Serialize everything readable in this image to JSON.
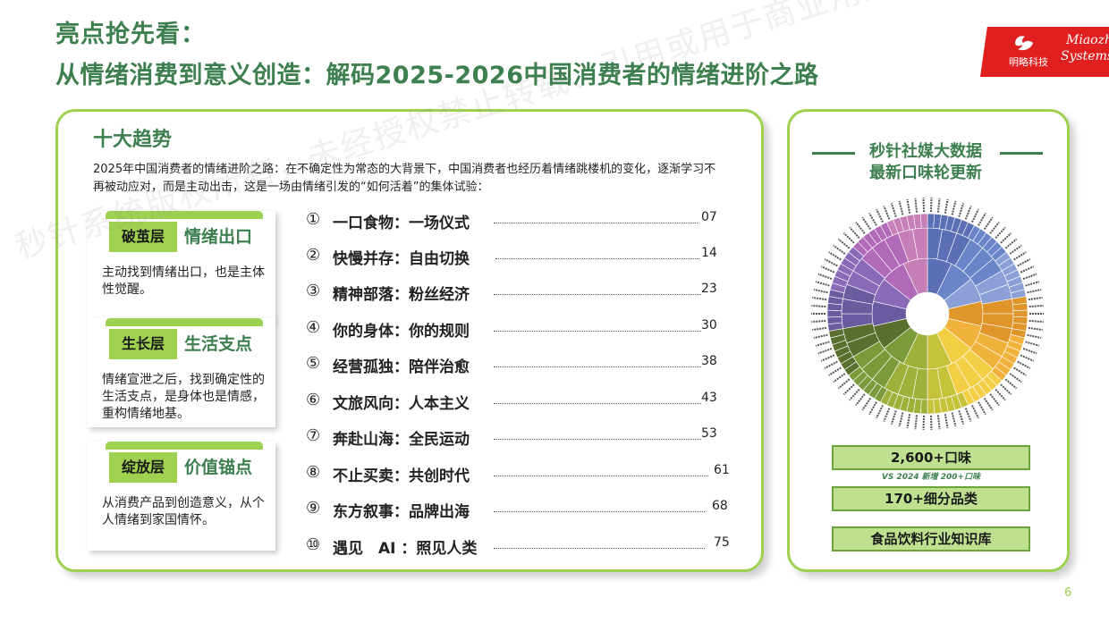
{
  "header": {
    "line1": "亮点抢先看：",
    "line2": "从情绪消费到意义创造：解码2025-2026中国消费者的情绪进阶之路"
  },
  "logo": {
    "cn": "明略科技",
    "en_line1": "Miaozhen",
    "en_line2": "Systems"
  },
  "left_panel": {
    "title": "十大趋势",
    "intro": "2025年中国消费者的情绪进阶之路：在不确定性为常态的大背景下，中国消费者也经历着情绪跳楼机的变化，逐渐学习不再被动应对，而是主动出击，这是一场由情绪引发的“如何活着”的集体试验：",
    "layers": [
      {
        "name": "破茧层",
        "tag": "情绪出口",
        "desc": "主动找到情绪出口，也是主体性觉醒。"
      },
      {
        "name": "生长层",
        "tag": "生活支点",
        "desc": "情绪宣泄之后，找到确定性的生活支点，是身体也是情感，重构情绪地基。"
      },
      {
        "name": "绽放层",
        "tag": "价值锚点",
        "desc": "从消费产品到创造意义，从个人情绪到家国情怀。"
      }
    ],
    "toc": [
      {
        "num": "①",
        "text": "一口食物：一场仪式",
        "page": "07"
      },
      {
        "num": "②",
        "text": "快慢并存：自由切换",
        "page": "14"
      },
      {
        "num": "③",
        "text": "精神部落：粉丝经济",
        "page": "23"
      },
      {
        "num": "④",
        "text": "你的身体：你的规则",
        "page": "30"
      },
      {
        "num": "⑤",
        "text": "经营孤独：陪伴治愈",
        "page": "38"
      },
      {
        "num": "⑥",
        "text": "文旅风向：人本主义",
        "page": "43"
      },
      {
        "num": "⑦",
        "text": "奔赴山海：全民运动",
        "page": "53"
      },
      {
        "num": "⑧",
        "text": "不止买卖：共创时代",
        "page": "61"
      },
      {
        "num": "⑨",
        "text": "东方叙事：品牌出海",
        "page": "68"
      },
      {
        "num": "⑩",
        "text": "遇见　AI ：照见人类",
        "page": "75"
      }
    ]
  },
  "right_panel": {
    "title_line1": "秒针社媒大数据",
    "title_line2": "最新口味轮更新",
    "stat1": "2,600+口味",
    "stat_note": "VS 2024 新增 200+口味",
    "stat2": "170+细分品类",
    "stat3": "食品饮料行业知识库"
  },
  "page_number": "6",
  "watermark": "秒针系统版权所有，未经授权禁止转载、引用或用于商业用途",
  "colors": {
    "brand_green": "#3d7f4f",
    "accent_green": "#9ed14f",
    "logo_red": "#e01f1f"
  }
}
